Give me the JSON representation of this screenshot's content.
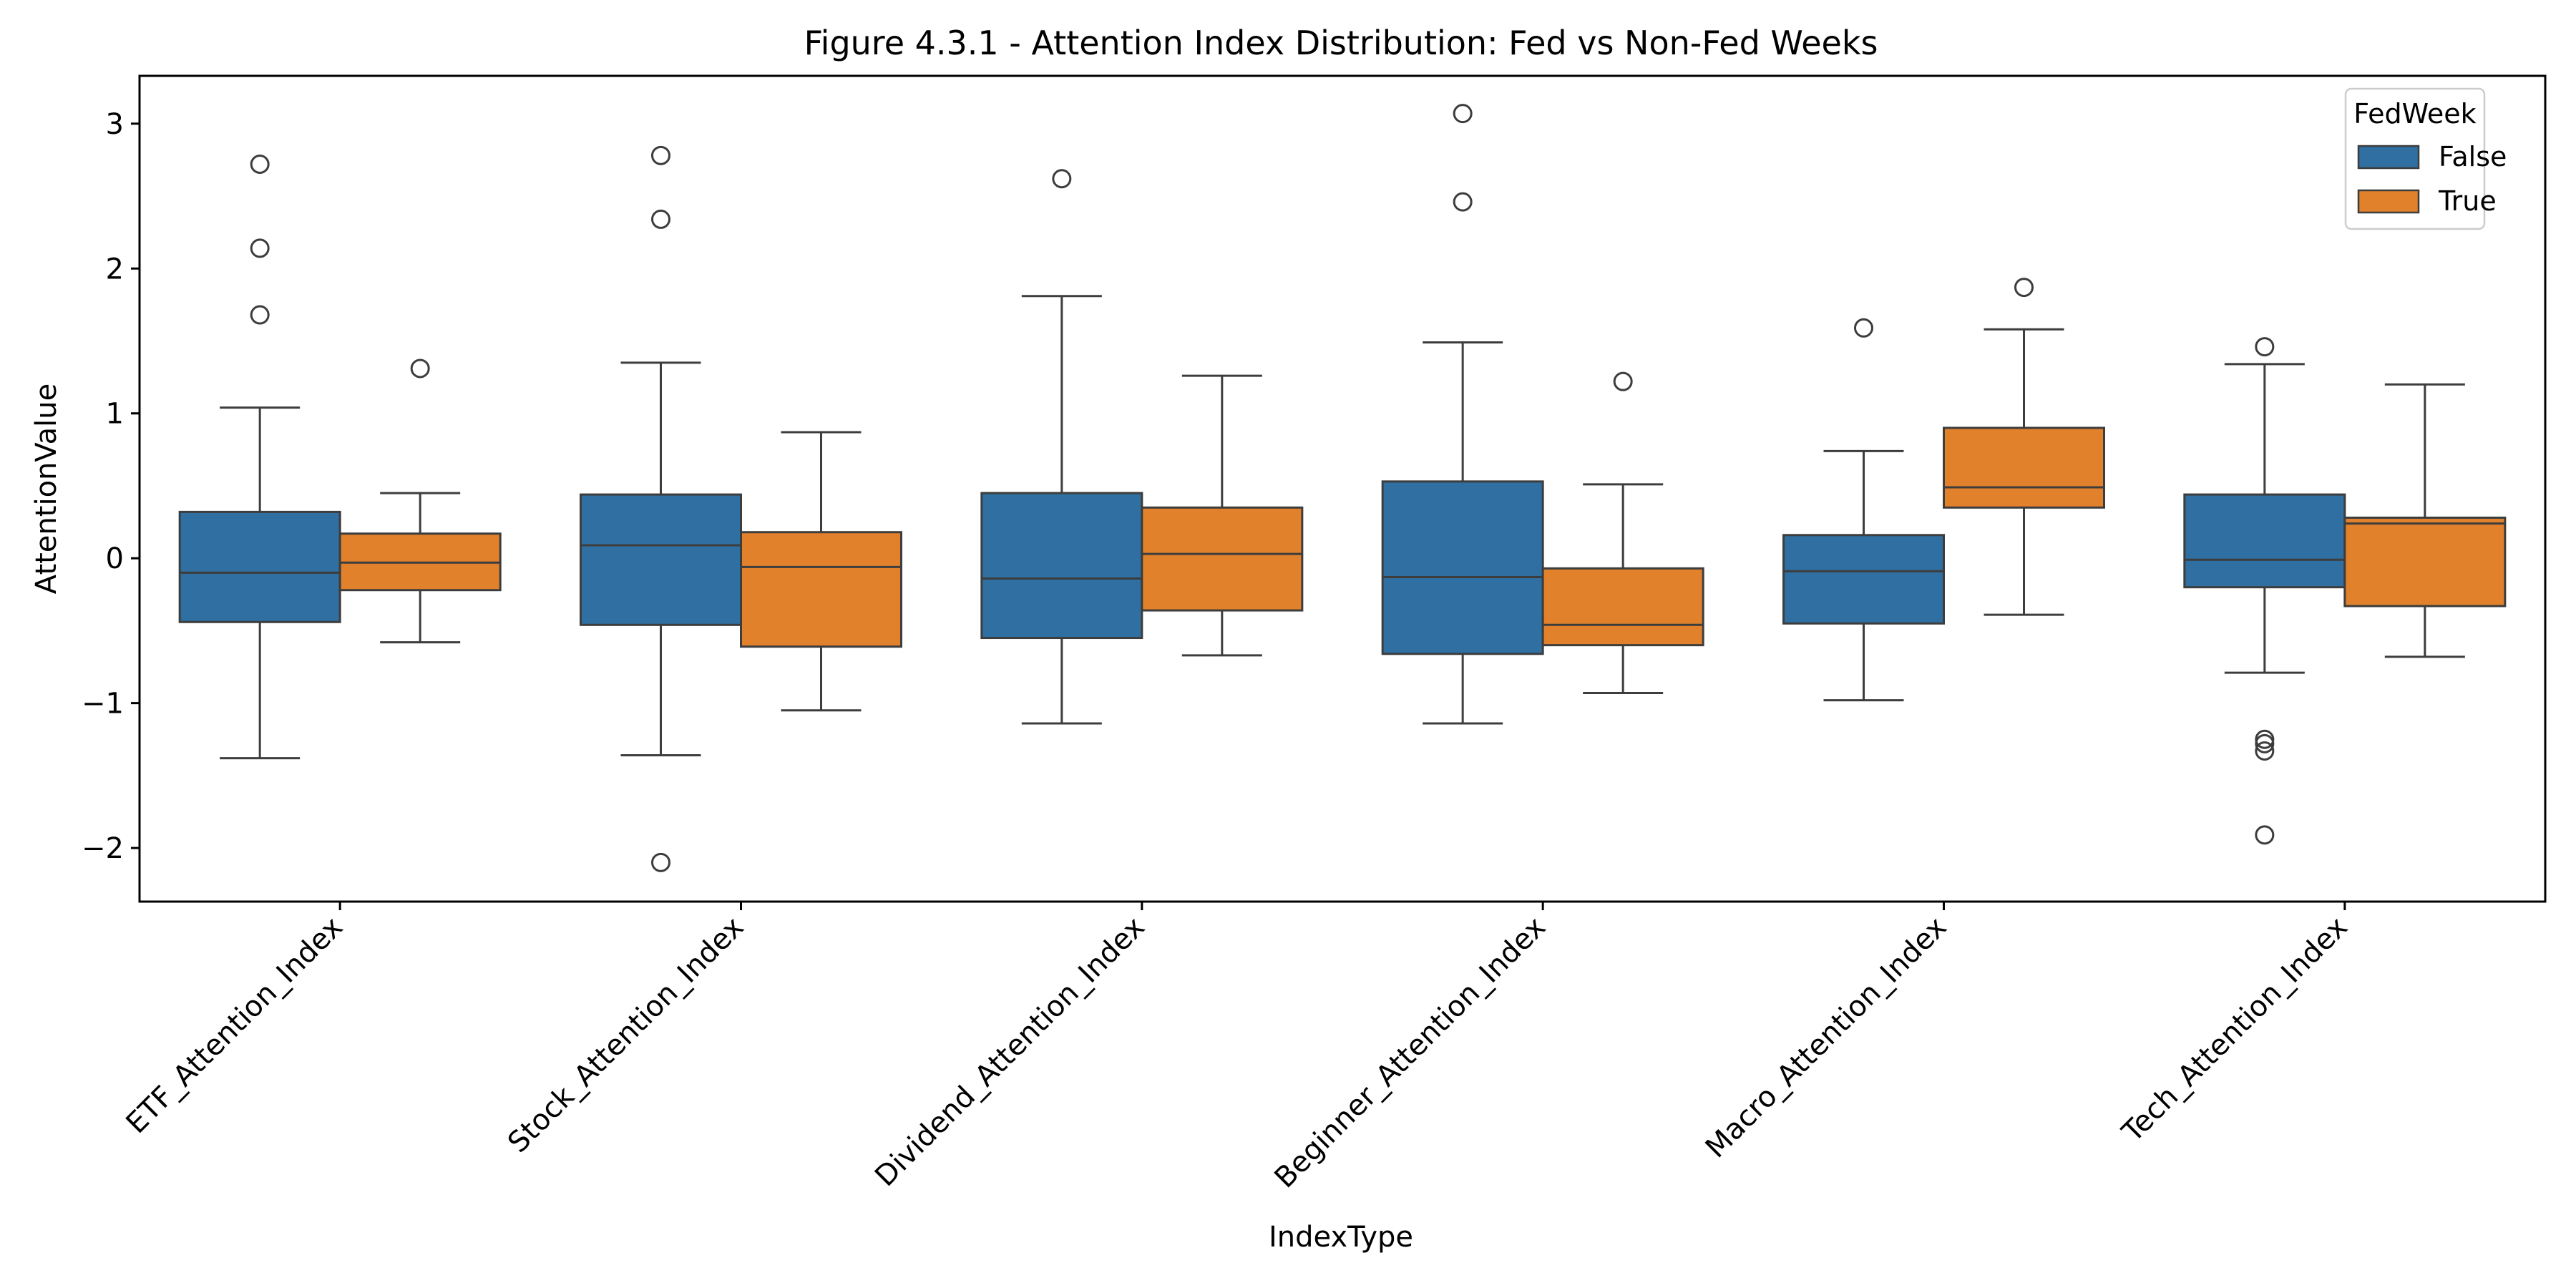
{
  "chart_data": {
    "type": "box",
    "title": "Figure 4.3.1 - Attention Index Distribution: Fed vs Non-Fed Weeks",
    "xlabel": "IndexType",
    "ylabel": "AttentionValue",
    "ylim": [
      -2.37,
      3.33
    ],
    "yticks": [
      -2,
      -1,
      0,
      1,
      2,
      3
    ],
    "ytick_labels": [
      "−2",
      "−1",
      "0",
      "1",
      "2",
      "3"
    ],
    "grid": false,
    "categories": [
      "ETF_Attention_Index",
      "Stock_Attention_Index",
      "Dividend_Attention_Index",
      "Beginner_Attention_Index",
      "Macro_Attention_Index",
      "Tech_Attention_Index"
    ],
    "legend": {
      "title": "FedWeek",
      "placement": "top-right"
    },
    "series": [
      {
        "name": "False",
        "color": "#2f6fa1",
        "boxes": [
          {
            "whisker_low": -1.38,
            "q1": -0.44,
            "median": -0.1,
            "q3": 0.32,
            "whisker_high": 1.04,
            "outliers": [
              2.72,
              2.14,
              1.68
            ]
          },
          {
            "whisker_low": -1.36,
            "q1": -0.46,
            "median": 0.09,
            "q3": 0.44,
            "whisker_high": 1.35,
            "outliers": [
              2.78,
              2.34,
              -2.1
            ]
          },
          {
            "whisker_low": -1.14,
            "q1": -0.55,
            "median": -0.14,
            "q3": 0.45,
            "whisker_high": 1.81,
            "outliers": [
              2.62
            ]
          },
          {
            "whisker_low": -1.14,
            "q1": -0.66,
            "median": -0.13,
            "q3": 0.53,
            "whisker_high": 1.49,
            "outliers": [
              3.07,
              2.46
            ]
          },
          {
            "whisker_low": -0.98,
            "q1": -0.45,
            "median": -0.09,
            "q3": 0.16,
            "whisker_high": 0.74,
            "outliers": [
              1.59
            ]
          },
          {
            "whisker_low": -0.79,
            "q1": -0.2,
            "median": -0.01,
            "q3": 0.44,
            "whisker_high": 1.34,
            "outliers": [
              1.46,
              -1.25,
              -1.28,
              -1.33,
              -1.91
            ]
          }
        ]
      },
      {
        "name": "True",
        "color": "#e1812c",
        "boxes": [
          {
            "whisker_low": -0.58,
            "q1": -0.22,
            "median": -0.03,
            "q3": 0.17,
            "whisker_high": 0.45,
            "outliers": [
              1.31
            ]
          },
          {
            "whisker_low": -1.05,
            "q1": -0.61,
            "median": -0.06,
            "q3": 0.18,
            "whisker_high": 0.87,
            "outliers": []
          },
          {
            "whisker_low": -0.67,
            "q1": -0.36,
            "median": 0.03,
            "q3": 0.35,
            "whisker_high": 1.26,
            "outliers": []
          },
          {
            "whisker_low": -0.93,
            "q1": -0.6,
            "median": -0.46,
            "q3": -0.07,
            "whisker_high": 0.51,
            "outliers": [
              1.22
            ]
          },
          {
            "whisker_low": -0.39,
            "q1": 0.35,
            "median": 0.49,
            "q3": 0.9,
            "whisker_high": 1.58,
            "outliers": [
              1.87
            ]
          },
          {
            "whisker_low": -0.68,
            "q1": -0.33,
            "median": 0.24,
            "q3": 0.28,
            "whisker_high": 1.2,
            "outliers": []
          }
        ]
      }
    ]
  }
}
